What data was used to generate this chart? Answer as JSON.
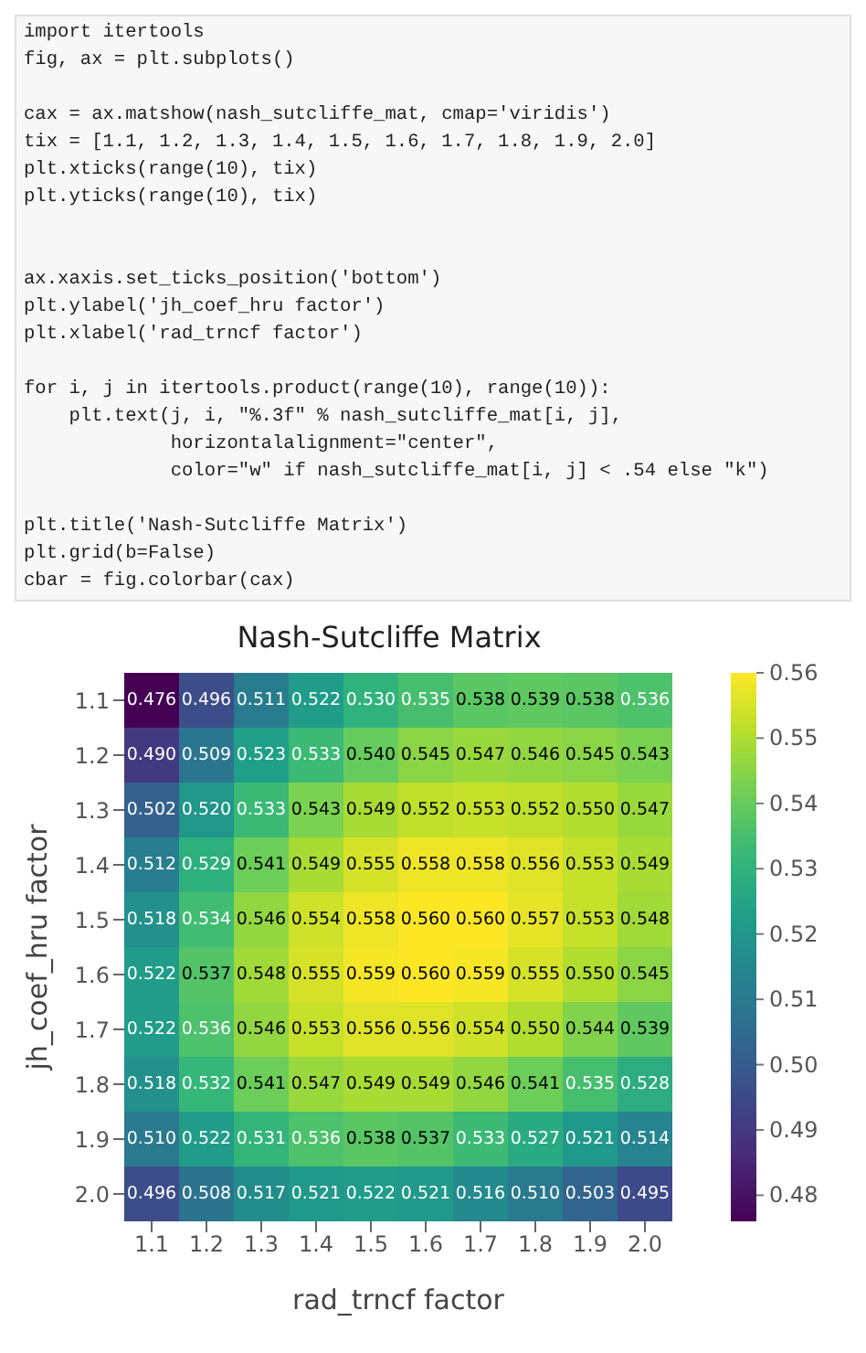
{
  "chart_data": {
    "type": "heatmap",
    "title": "Nash-Sutcliffe Matrix",
    "xlabel": "rad_trncf factor",
    "ylabel": "jh_coef_hru factor",
    "annotations": [
      "import itertools\nfig, ax = plt.subplots()\n\ncax = ax.matshow(nash_sutcliffe_mat, cmap='viridis')\ntix = [1.1, 1.2, 1.3, 1.4, 1.5, 1.6, 1.7, 1.8, 1.9, 2.0]\nplt.xticks(range(10), tix)\nplt.yticks(range(10), tix)\n\n\nax.xaxis.set_ticks_position('bottom')\nplt.ylabel('jh_coef_hru factor')\nplt.xlabel('rad_trncf factor')\n\nfor i, j in itertools.product(range(10), range(10)):\n    plt.text(j, i, \"%.3f\" % nash_sutcliffe_mat[i, j],\n             horizontalalignment=\"center\",\n             color=\"w\" if nash_sutcliffe_mat[i, j] < .54 else \"k\")\n\nplt.title('Nash-Sutcliffe Matrix')\nplt.grid(b=False)\ncbar = fig.colorbar(cax)"
    ],
    "categories": [
      "1.1",
      "1.2",
      "1.3",
      "1.4",
      "1.5",
      "1.6",
      "1.7",
      "1.8",
      "1.9",
      "2.0"
    ],
    "y_categories": [
      "1.1",
      "1.2",
      "1.3",
      "1.4",
      "1.5",
      "1.6",
      "1.7",
      "1.8",
      "1.9",
      "2.0"
    ],
    "cells": [
      [
        0.476,
        0.496,
        0.511,
        0.522,
        0.53,
        0.535,
        0.538,
        0.539,
        0.538,
        0.536
      ],
      [
        0.49,
        0.509,
        0.523,
        0.533,
        0.54,
        0.545,
        0.547,
        0.546,
        0.545,
        0.543
      ],
      [
        0.502,
        0.52,
        0.533,
        0.543,
        0.549,
        0.552,
        0.553,
        0.552,
        0.55,
        0.547
      ],
      [
        0.512,
        0.529,
        0.541,
        0.549,
        0.555,
        0.558,
        0.558,
        0.556,
        0.553,
        0.549
      ],
      [
        0.518,
        0.534,
        0.546,
        0.554,
        0.558,
        0.56,
        0.56,
        0.557,
        0.553,
        0.548
      ],
      [
        0.522,
        0.537,
        0.548,
        0.555,
        0.559,
        0.56,
        0.559,
        0.555,
        0.55,
        0.545
      ],
      [
        0.522,
        0.536,
        0.546,
        0.553,
        0.556,
        0.556,
        0.554,
        0.55,
        0.544,
        0.539
      ],
      [
        0.518,
        0.532,
        0.541,
        0.547,
        0.549,
        0.549,
        0.546,
        0.541,
        0.535,
        0.528
      ],
      [
        0.51,
        0.522,
        0.531,
        0.536,
        0.538,
        0.537,
        0.533,
        0.527,
        0.521,
        0.514
      ],
      [
        0.496,
        0.508,
        0.517,
        0.521,
        0.522,
        0.521,
        0.516,
        0.51,
        0.503,
        0.495
      ]
    ],
    "cell_labels": [
      [
        "0.476",
        "0.496",
        "0.511",
        "0.522",
        "0.530",
        "0.535",
        "0.538",
        "0.539",
        "0.538",
        "0.536"
      ],
      [
        "0.490",
        "0.509",
        "0.523",
        "0.533",
        "0.540",
        "0.545",
        "0.547",
        "0.546",
        "0.545",
        "0.543"
      ],
      [
        "0.502",
        "0.520",
        "0.533",
        "0.543",
        "0.549",
        "0.552",
        "0.553",
        "0.552",
        "0.550",
        "0.547"
      ],
      [
        "0.512",
        "0.529",
        "0.541",
        "0.549",
        "0.555",
        "0.558",
        "0.558",
        "0.556",
        "0.553",
        "0.549"
      ],
      [
        "0.518",
        "0.534",
        "0.546",
        "0.554",
        "0.558",
        "0.560",
        "0.560",
        "0.557",
        "0.553",
        "0.548"
      ],
      [
        "0.522",
        "0.537",
        "0.548",
        "0.555",
        "0.559",
        "0.560",
        "0.559",
        "0.555",
        "0.550",
        "0.545"
      ],
      [
        "0.522",
        "0.536",
        "0.546",
        "0.553",
        "0.556",
        "0.556",
        "0.554",
        "0.550",
        "0.544",
        "0.539"
      ],
      [
        "0.518",
        "0.532",
        "0.541",
        "0.547",
        "0.549",
        "0.549",
        "0.546",
        "0.541",
        "0.535",
        "0.528"
      ],
      [
        "0.510",
        "0.522",
        "0.531",
        "0.536",
        "0.538",
        "0.537",
        "0.533",
        "0.527",
        "0.521",
        "0.514"
      ],
      [
        "0.496",
        "0.508",
        "0.517",
        "0.521",
        "0.522",
        "0.521",
        "0.516",
        "0.510",
        "0.503",
        "0.495"
      ]
    ],
    "clim": [
      0.476,
      0.56
    ],
    "cticks": [
      0.48,
      0.49,
      {
        "value": 0.5,
        "label": "0.50"
      },
      0.51,
      0.52,
      0.53,
      0.54,
      0.55,
      0.56
    ]
  }
}
